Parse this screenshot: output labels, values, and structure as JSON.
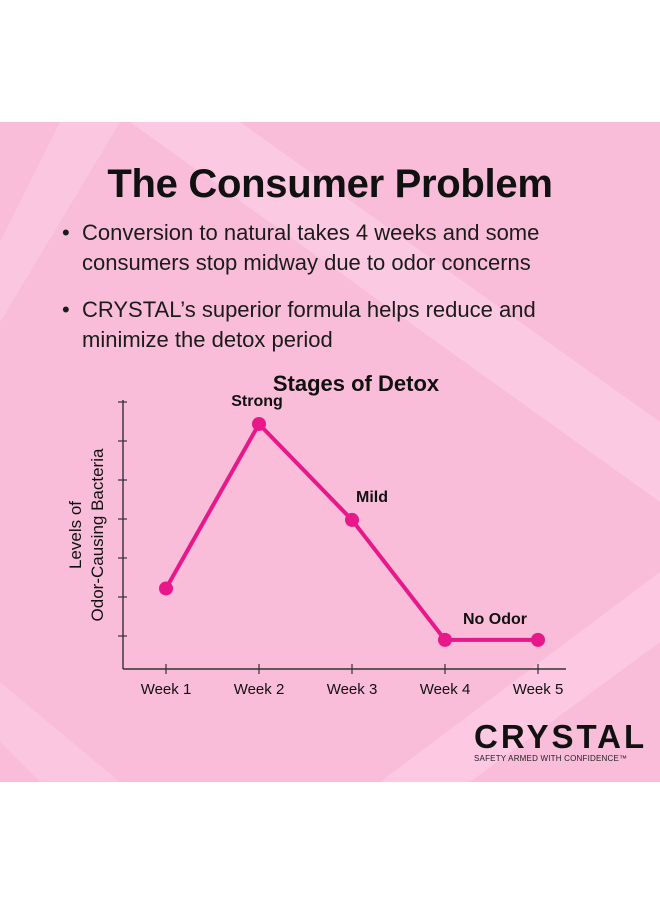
{
  "title": "The Consumer Problem",
  "bullets": [
    "Conversion to natural takes 4 weeks and some consumers stop midway due to odor concerns",
    "CRYSTAL’s superior formula helps reduce and minimize the detox period"
  ],
  "brand": {
    "name": "CRYSTAL",
    "tagline": "SAFETY ARMED WITH CONFIDENCE™",
    "background_color": "#f9bdd9",
    "accent_color": "#e8178a"
  },
  "chart_data": {
    "type": "line",
    "title": "Stages of Detox",
    "xlabel": "",
    "ylabel_lines": [
      "Levels of",
      "Odor-Causing Bacteria"
    ],
    "categories": [
      "Week 1",
      "Week 2",
      "Week 3",
      "Week 4",
      "Week 5"
    ],
    "series": [
      {
        "values": [
          1.5,
          6.3,
          3.5,
          0,
          0
        ],
        "color": "#e8178a"
      }
    ],
    "point_labels": [
      "",
      "Strong",
      "Mild",
      "No Odor",
      ""
    ],
    "ylim": [
      -0.85,
      7
    ],
    "y_tick_count": 6,
    "grid": false,
    "legend": "none"
  }
}
